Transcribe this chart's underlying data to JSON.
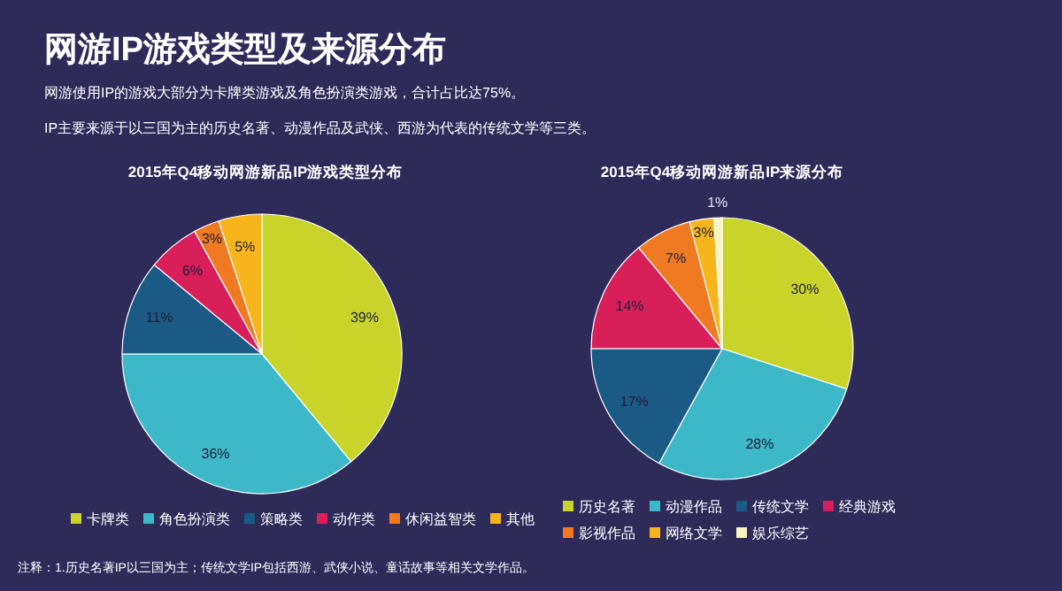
{
  "chart_data": [
    {
      "type": "pie",
      "title": "2015年Q4移动网游新品IP游戏类型分布",
      "legend": "bottom",
      "value_labels": [
        "39%",
        "36%",
        "11%",
        "6%",
        "3%",
        "5%"
      ],
      "annotations": [
        "网游IP游戏类型及来源分布",
        "网游使用IP的游戏大部分为卡牌类游戏及角色扮演类游戏，合计占比达75%。",
        "IP主要来源于以三国为主的历史名著、动漫作品及武侠、西游为代表的传统文学等三类。",
        "注释：1.历史名著IP以三国为主；传统文学IP包括西游、武侠小说、童话故事等相关文学作品。"
      ],
      "categories": [
        "卡牌类",
        "角色扮演类",
        "策略类",
        "动作类",
        "休闲益智类",
        "其他"
      ],
      "values": [
        39,
        36,
        11,
        6,
        3,
        5
      ],
      "colors": [
        "#c8d42a",
        "#3db8c8",
        "#1b5a84",
        "#d81f5a",
        "#ef7a22",
        "#f7b51c"
      ]
    },
    {
      "type": "pie",
      "title": "2015年Q4移动网游新品IP来源分布",
      "legend": "bottom",
      "value_labels": [
        "30%",
        "28%",
        "17%",
        "14%",
        "7%",
        "3%",
        "1%"
      ],
      "categories": [
        "历史名著",
        "动漫作品",
        "传统文学",
        "经典游戏",
        "影视作品",
        "网络文学",
        "娱乐综艺"
      ],
      "values": [
        30,
        28,
        17,
        14,
        7,
        3,
        1
      ],
      "colors": [
        "#c8d42a",
        "#3db8c8",
        "#1b5a84",
        "#d81f5a",
        "#ef7a22",
        "#f7b51c",
        "#f8f4c0"
      ]
    }
  ]
}
